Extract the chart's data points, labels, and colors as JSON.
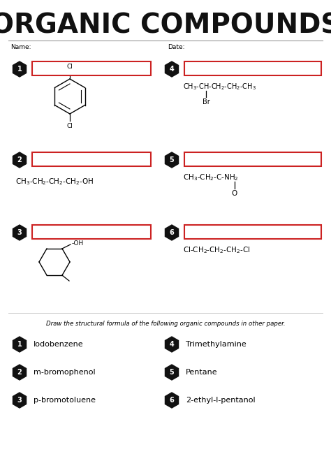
{
  "title": "ORGANIC COMPOUNDS",
  "title_fontsize": 28,
  "name_label": "Name:",
  "date_label": "Date:",
  "bg_color": "#ffffff",
  "box_color": "#cc2222",
  "hex_color": "#111111",
  "text_color": "#111111",
  "instruction": "Draw the structural formula of the following organic compounds in other paper.",
  "compounds_left": [
    "Iodobenzene",
    "m-bromophenol",
    "p-bromotoluene"
  ],
  "compounds_right": [
    "Trimethylamine",
    "Pentane",
    "2-ethyl-l-pentanol"
  ],
  "q_numbers_left": [
    "1",
    "2",
    "3"
  ],
  "q_numbers_right": [
    "4",
    "5",
    "6"
  ]
}
